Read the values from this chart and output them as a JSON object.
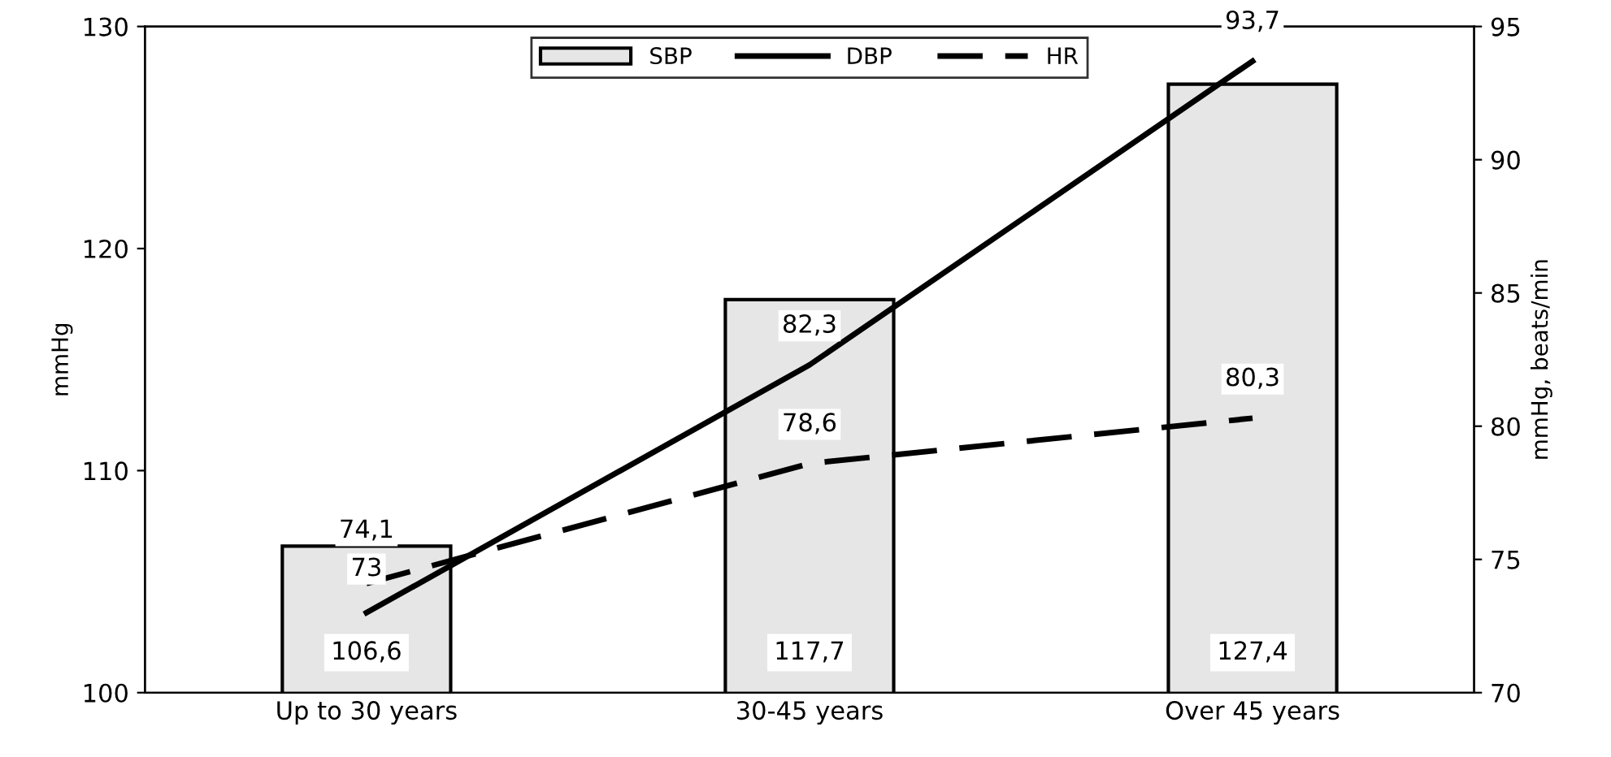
{
  "chart_data": {
    "type": "bar",
    "categories": [
      "Up to 30 years",
      "30-45 years",
      "Over 45 years"
    ],
    "ylabel": "mmHg",
    "y2label": "mmHg, beats/min",
    "ylim": [
      100,
      130
    ],
    "yticks": [
      100,
      110,
      120,
      130
    ],
    "y2lim": [
      70,
      95
    ],
    "y2ticks": [
      70,
      75,
      80,
      85,
      90,
      95
    ],
    "grid": false,
    "legend": "top",
    "series": [
      {
        "name": "SBP",
        "color": "#e6e6e6",
        "values": [
          106.6,
          117.7,
          127.4
        ],
        "value_labels": [
          "106,6",
          "117,7",
          "127,4"
        ]
      },
      {
        "name": "DBP",
        "type": "line",
        "axis": "y2",
        "color": "#000000",
        "line_style": "solid",
        "values": [
          73,
          82.3,
          93.7
        ],
        "value_labels": [
          "73",
          "82,3",
          "93,7"
        ]
      },
      {
        "name": "HR",
        "type": "line",
        "axis": "y2",
        "color": "#000000",
        "line_style": "dashed",
        "values": [
          74.1,
          78.6,
          80.3
        ],
        "value_labels": [
          "74,1",
          "78,6",
          "80,3"
        ]
      }
    ]
  }
}
